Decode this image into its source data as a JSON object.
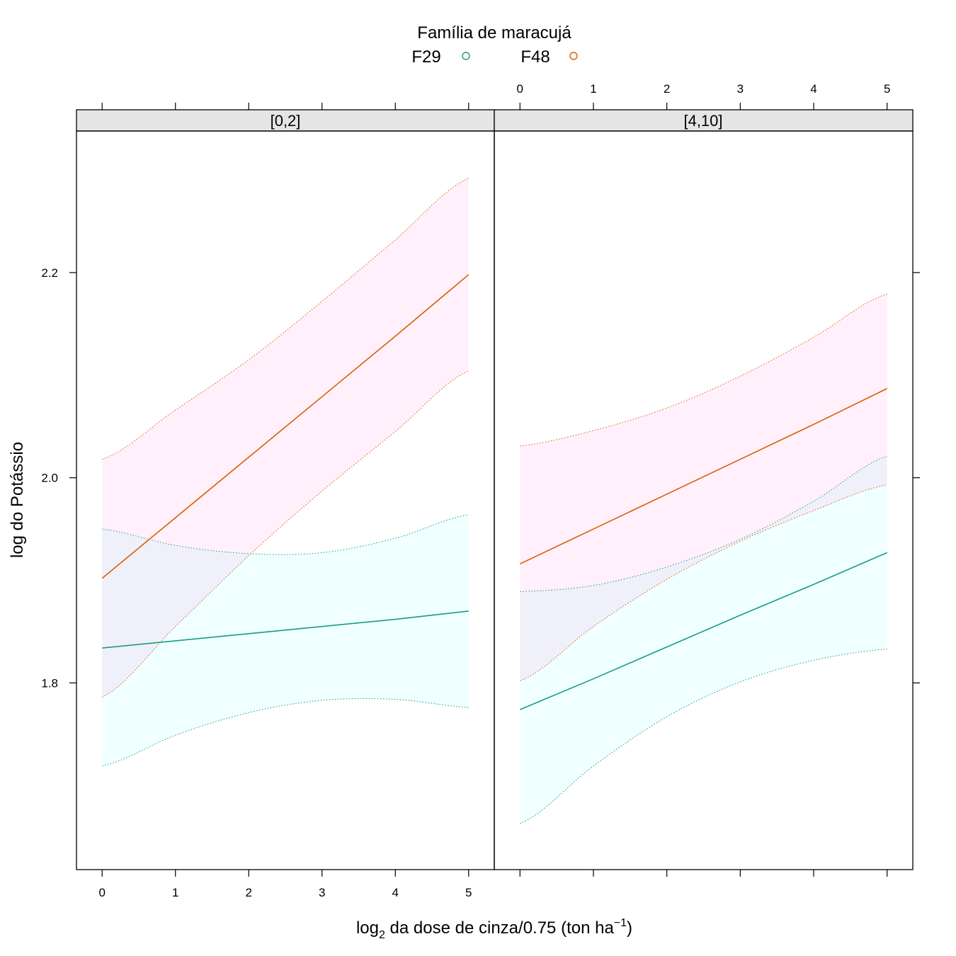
{
  "chart_data": {
    "type": "line",
    "legend": {
      "title": "Família de maracujá",
      "placement": "top",
      "entries": [
        {
          "name": "F29",
          "color": "#1b9e77"
        },
        {
          "name": "F48",
          "color": "#d95f02"
        }
      ]
    },
    "xlabel": {
      "base": "log",
      "sub": "2",
      "mid": " da dose de cinza/0.75 (ton ha",
      "sup": "−1",
      "end": ")"
    },
    "ylabel": "log do Potássio",
    "xlim": [
      -0.35,
      5.35
    ],
    "ylim": [
      1.618,
      2.338
    ],
    "x_ticks": [
      0,
      1,
      2,
      3,
      4,
      5
    ],
    "x_tick_labels": [
      "0",
      "1",
      "2",
      "3",
      "4",
      "5"
    ],
    "y_ticks": [
      1.8,
      2.0,
      2.2
    ],
    "y_tick_labels": [
      "1.8",
      "2.0",
      "2.2"
    ],
    "grid": false,
    "band_colors": {
      "F29": "#f0ffff",
      "F48": "#fff0fb",
      "overlap": "#f3f2fc"
    },
    "panels": [
      {
        "strip": "[0,2]",
        "series": [
          {
            "name": "F29",
            "color": "#1b9e77",
            "x": [
              0,
              1,
              2,
              3,
              4,
              5
            ],
            "fit": [
              1.834,
              1.841,
              1.848,
              1.855,
              1.862,
              1.87
            ],
            "lower": [
              1.719,
              1.749,
              1.771,
              1.783,
              1.784,
              1.776
            ],
            "upper": [
              1.95,
              1.934,
              1.926,
              1.927,
              1.941,
              1.964
            ]
          },
          {
            "name": "F48",
            "color": "#d95f02",
            "x": [
              0,
              1,
              2,
              3,
              4,
              5
            ],
            "fit": [
              1.902,
              1.961,
              2.02,
              2.079,
              2.138,
              2.198
            ],
            "lower": [
              1.786,
              1.855,
              1.924,
              1.987,
              2.045,
              2.104
            ],
            "upper": [
              2.018,
              2.066,
              2.115,
              2.172,
              2.232,
              2.292
            ]
          }
        ]
      },
      {
        "strip": "[4,10]",
        "series": [
          {
            "name": "F29",
            "color": "#1b9e77",
            "x": [
              0,
              1,
              2,
              3,
              4,
              5
            ],
            "fit": [
              1.774,
              1.804,
              1.835,
              1.866,
              1.896,
              1.927
            ],
            "lower": [
              1.663,
              1.719,
              1.767,
              1.801,
              1.822,
              1.833
            ],
            "upper": [
              1.889,
              1.895,
              1.913,
              1.94,
              1.977,
              2.021
            ]
          },
          {
            "name": "F48",
            "color": "#d95f02",
            "x": [
              0,
              1,
              2,
              3,
              4,
              5
            ],
            "fit": [
              1.916,
              1.95,
              1.984,
              2.018,
              2.052,
              2.087
            ],
            "lower": [
              1.802,
              1.855,
              1.901,
              1.938,
              1.968,
              1.993
            ],
            "upper": [
              2.031,
              2.046,
              2.068,
              2.099,
              2.137,
              2.179
            ]
          }
        ]
      }
    ]
  }
}
